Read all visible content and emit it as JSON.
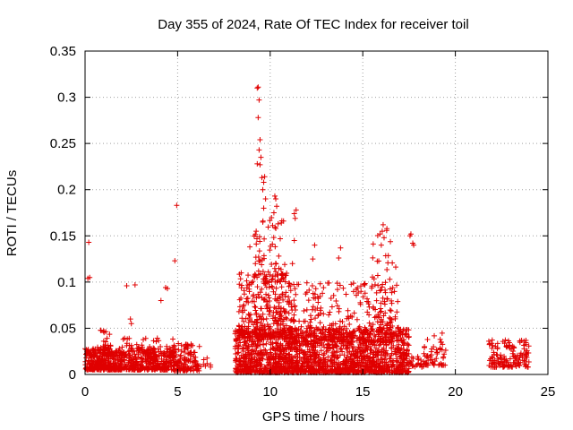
{
  "chart_data": {
    "type": "scatter",
    "title": "Day 355 of 2024, Rate Of TEC Index for receiver toil",
    "xlabel": "GPS time / hours",
    "ylabel": "ROTI / TECUs",
    "xlim": [
      0,
      25
    ],
    "ylim": [
      0,
      0.35
    ],
    "xticks": [
      0,
      5,
      10,
      15,
      20,
      25
    ],
    "xtick_labels": [
      "0",
      "5",
      "10",
      "15",
      "20",
      "25"
    ],
    "yticks": [
      0,
      0.05,
      0.1,
      0.15,
      0.2,
      0.25,
      0.3,
      0.35
    ],
    "ytick_labels": [
      "0",
      "0.05",
      "0.1",
      "0.15",
      "0.2",
      "0.25",
      "0.3",
      "0.35"
    ],
    "grid": true,
    "marker": "+",
    "color": "#e00000",
    "clusters": [
      {
        "x_range": [
          0.0,
          1.5
        ],
        "y_range": [
          0.005,
          0.03
        ],
        "count": 260
      },
      {
        "x_range": [
          0.8,
          1.5
        ],
        "y_range": [
          0.02,
          0.05
        ],
        "count": 40
      },
      {
        "x_range": [
          1.5,
          4.8
        ],
        "y_range": [
          0.005,
          0.028
        ],
        "count": 380
      },
      {
        "x_range": [
          1.5,
          4.8
        ],
        "y_range": [
          0.02,
          0.04
        ],
        "count": 60
      },
      {
        "x_range": [
          4.8,
          6.2
        ],
        "y_range": [
          0.004,
          0.035
        ],
        "count": 120
      },
      {
        "x_range": [
          6.2,
          6.8
        ],
        "y_range": [
          0.008,
          0.018
        ],
        "count": 8
      },
      {
        "x_range": [
          8.1,
          17.5
        ],
        "y_range": [
          0.002,
          0.05
        ],
        "count": 1700
      },
      {
        "x_range": [
          8.3,
          11.2
        ],
        "y_range": [
          0.04,
          0.11
        ],
        "count": 320
      },
      {
        "x_range": [
          11.2,
          16.6
        ],
        "y_range": [
          0.035,
          0.1
        ],
        "count": 320
      },
      {
        "x_range": [
          9.1,
          10.8
        ],
        "y_range": [
          0.1,
          0.17
        ],
        "count": 70
      },
      {
        "x_range": [
          15.5,
          17.0
        ],
        "y_range": [
          0.05,
          0.16
        ],
        "count": 50
      },
      {
        "x_range": [
          17.5,
          18.3
        ],
        "y_range": [
          0.008,
          0.02
        ],
        "count": 25
      },
      {
        "x_range": [
          18.3,
          19.5
        ],
        "y_range": [
          0.01,
          0.045
        ],
        "count": 60
      },
      {
        "x_range": [
          21.8,
          24.0
        ],
        "y_range": [
          0.008,
          0.038
        ],
        "count": 140
      }
    ],
    "points": [
      [
        0.15,
        0.104
      ],
      [
        0.25,
        0.105
      ],
      [
        0.2,
        0.143
      ],
      [
        2.25,
        0.096
      ],
      [
        2.7,
        0.097
      ],
      [
        4.1,
        0.08
      ],
      [
        4.35,
        0.094
      ],
      [
        4.45,
        0.093
      ],
      [
        4.85,
        0.123
      ],
      [
        4.95,
        0.183
      ],
      [
        2.45,
        0.06
      ],
      [
        2.5,
        0.055
      ],
      [
        9.3,
        0.31
      ],
      [
        9.35,
        0.311
      ],
      [
        9.4,
        0.297
      ],
      [
        9.35,
        0.278
      ],
      [
        9.45,
        0.254
      ],
      [
        9.4,
        0.243
      ],
      [
        9.5,
        0.235
      ],
      [
        9.3,
        0.228
      ],
      [
        9.45,
        0.227
      ],
      [
        9.55,
        0.213
      ],
      [
        9.7,
        0.214
      ],
      [
        9.65,
        0.208
      ],
      [
        9.6,
        0.2
      ],
      [
        9.75,
        0.19
      ],
      [
        9.65,
        0.18
      ],
      [
        9.6,
        0.165
      ],
      [
        10.25,
        0.193
      ],
      [
        10.3,
        0.19
      ],
      [
        10.35,
        0.182
      ],
      [
        10.2,
        0.175
      ],
      [
        11.3,
        0.174
      ],
      [
        11.35,
        0.169
      ],
      [
        11.4,
        0.178
      ],
      [
        11.3,
        0.145
      ],
      [
        12.4,
        0.14
      ],
      [
        12.3,
        0.125
      ],
      [
        13.8,
        0.137
      ],
      [
        13.7,
        0.126
      ],
      [
        16.1,
        0.162
      ],
      [
        16.05,
        0.155
      ],
      [
        16.15,
        0.148
      ],
      [
        16.0,
        0.14
      ],
      [
        17.6,
        0.152
      ],
      [
        17.75,
        0.14
      ],
      [
        17.7,
        0.142
      ],
      [
        17.55,
        0.15
      ],
      [
        10.6,
        0.164
      ],
      [
        11.2,
        0.12
      ],
      [
        9.2,
        0.12
      ],
      [
        8.9,
        0.138
      ]
    ]
  }
}
